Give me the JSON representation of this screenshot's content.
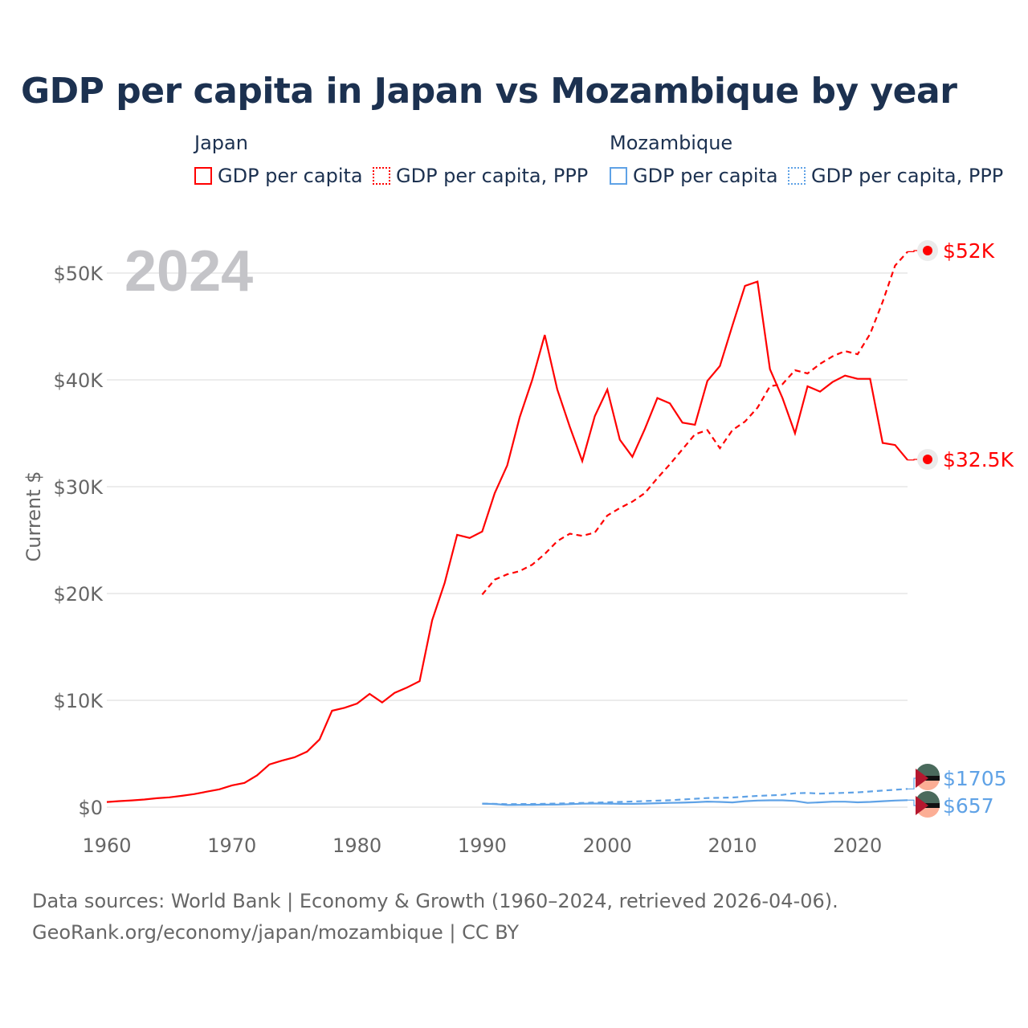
{
  "title": "GDP per capita in Japan vs Mozambique by year",
  "legend": {
    "groups": [
      {
        "name": "Japan",
        "items": [
          "GDP per capita",
          "GDP per capita, PPP"
        ]
      },
      {
        "name": "Mozambique",
        "items": [
          "GDP per capita",
          "GDP per capita, PPP"
        ]
      }
    ]
  },
  "year_label": "2024",
  "footer": {
    "line1": "Data sources: World Bank | Economy & Growth (1960–2024, retrieved 2026-04-06).",
    "line2": "GeoRank.org/economy/japan/mozambique | CC BY"
  },
  "chart_data": {
    "type": "line",
    "title": "GDP per capita in Japan vs Mozambique by year",
    "xlabel": "",
    "ylabel": "Current $",
    "xlim": [
      1960,
      2024
    ],
    "ylim": [
      0,
      52000
    ],
    "x_ticks": [
      1960,
      1970,
      1980,
      1990,
      2000,
      2010,
      2020
    ],
    "x_tick_labels": [
      "1960",
      "1970",
      "1980",
      "1990",
      "2000",
      "2010",
      "2020"
    ],
    "y_ticks": [
      0,
      10000,
      20000,
      30000,
      40000,
      50000
    ],
    "y_tick_labels": [
      "$0",
      "$10K",
      "$20K",
      "$30K",
      "$40K",
      "$50K"
    ],
    "grid": true,
    "legend_position": "top",
    "series": [
      {
        "name": "Japan GDP per capita",
        "color": "#ff0000",
        "dash": "solid",
        "end_label": "$32.5K",
        "x": [
          1960,
          1961,
          1962,
          1963,
          1964,
          1965,
          1966,
          1967,
          1968,
          1969,
          1970,
          1971,
          1972,
          1973,
          1974,
          1975,
          1976,
          1977,
          1978,
          1979,
          1980,
          1981,
          1982,
          1983,
          1984,
          1985,
          1986,
          1987,
          1988,
          1989,
          1990,
          1991,
          1992,
          1993,
          1994,
          1995,
          1996,
          1997,
          1998,
          1999,
          2000,
          2001,
          2002,
          2003,
          2004,
          2005,
          2006,
          2007,
          2008,
          2009,
          2010,
          2011,
          2012,
          2013,
          2014,
          2015,
          2016,
          2017,
          2018,
          2019,
          2020,
          2021,
          2022,
          2023,
          2024
        ],
        "y": [
          479,
          563,
          634,
          718,
          835,
          919,
          1058,
          1228,
          1450,
          1669,
          2037,
          2272,
          2967,
          3997,
          4354,
          4659,
          5198,
          6335,
          9020,
          9300,
          9700,
          10600,
          9800,
          10700,
          11200,
          11800,
          17500,
          21000,
          25500,
          25200,
          25800,
          29400,
          32000,
          36500,
          40000,
          44200,
          39100,
          35600,
          32400,
          36600,
          39100,
          34400,
          32800,
          35400,
          38300,
          37800,
          36000,
          35800,
          39900,
          41300,
          45100,
          48800,
          49200,
          41000,
          38300,
          35000,
          39400,
          38900,
          39800,
          40400,
          40100,
          40100,
          34100,
          33900,
          32500
        ]
      },
      {
        "name": "Japan GDP per capita, PPP",
        "color": "#ff0000",
        "dash": "dashed",
        "end_label": "$52K",
        "x": [
          1990,
          1991,
          1992,
          1993,
          1994,
          1995,
          1996,
          1997,
          1998,
          1999,
          2000,
          2001,
          2002,
          2003,
          2004,
          2005,
          2006,
          2007,
          2008,
          2009,
          2010,
          2011,
          2012,
          2013,
          2014,
          2015,
          2016,
          2017,
          2018,
          2019,
          2020,
          2021,
          2022,
          2023,
          2024
        ],
        "y": [
          19900,
          21300,
          21800,
          22100,
          22700,
          23700,
          24900,
          25600,
          25400,
          25700,
          27300,
          28000,
          28600,
          29400,
          30800,
          32100,
          33500,
          34900,
          35300,
          33600,
          35300,
          36100,
          37400,
          39400,
          39600,
          40900,
          40600,
          41500,
          42200,
          42700,
          42400,
          44300,
          47300,
          50700,
          52000
        ]
      },
      {
        "name": "Mozambique GDP per capita",
        "color": "#5fa2e6",
        "dash": "solid",
        "end_label": "$657",
        "x": [
          1990,
          1991,
          1992,
          1993,
          1994,
          1995,
          1996,
          1997,
          1998,
          1999,
          2000,
          2001,
          2002,
          2003,
          2004,
          2005,
          2006,
          2007,
          2008,
          2009,
          2010,
          2011,
          2012,
          2013,
          2014,
          2015,
          2016,
          2017,
          2018,
          2019,
          2020,
          2021,
          2022,
          2023,
          2024
        ],
        "y": [
          330,
          290,
          200,
          210,
          220,
          230,
          240,
          280,
          320,
          340,
          330,
          310,
          310,
          330,
          370,
          400,
          420,
          460,
          520,
          490,
          440,
          560,
          620,
          640,
          640,
          580,
          400,
          450,
          510,
          510,
          450,
          490,
          560,
          620,
          657
        ]
      },
      {
        "name": "Mozambique GDP per capita, PPP",
        "color": "#5fa2e6",
        "dash": "dashed",
        "end_label": "$1705",
        "x": [
          1990,
          1992,
          1995,
          2000,
          2005,
          2008,
          2010,
          2012,
          2014,
          2015,
          2016,
          2017,
          2020,
          2022,
          2024
        ],
        "y": [
          330,
          280,
          310,
          450,
          650,
          850,
          900,
          1050,
          1150,
          1300,
          1330,
          1260,
          1380,
          1550,
          1705
        ]
      }
    ]
  }
}
